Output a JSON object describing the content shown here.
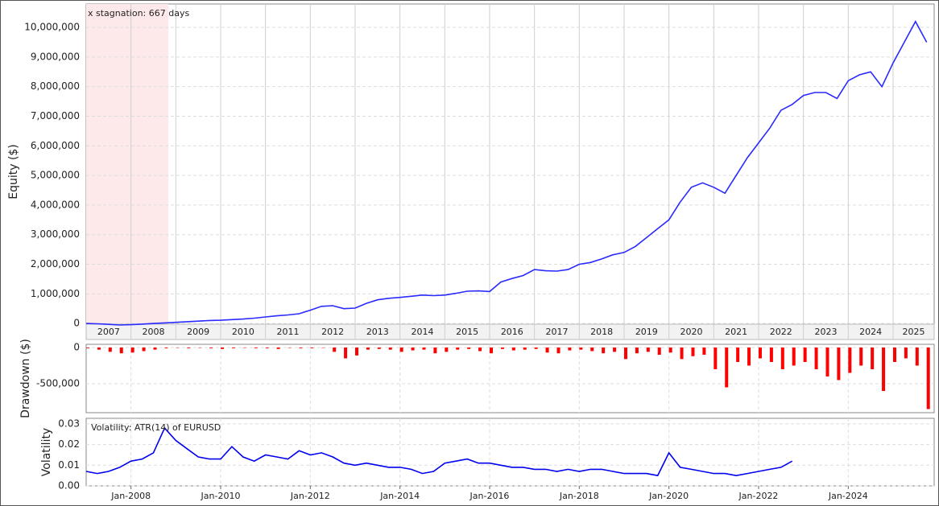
{
  "chart_data": [
    {
      "type": "line",
      "ylabel": "Equity ($)",
      "color": "#2a2aff",
      "annotation": "x stagnation: 667 days",
      "stagnation": [
        "2007-01",
        "2008-11"
      ],
      "xlim": [
        "2007-01",
        "2025-12"
      ],
      "ylim": [
        -540000,
        10790000
      ],
      "yticks": [
        0,
        {
          "value": 1000000,
          "label": "1,000,000"
        },
        {
          "value": 2000000,
          "label": "2,000,000"
        },
        {
          "value": 3000000,
          "label": "3,000,000"
        },
        {
          "value": 4000000,
          "label": "4,000,000"
        },
        {
          "value": 5000000,
          "label": "5,000,000"
        },
        {
          "value": 6000000,
          "label": "6,000,000"
        },
        {
          "value": 7000000,
          "label": "7,000,000"
        },
        {
          "value": 8000000,
          "label": "8,000,000"
        },
        {
          "value": 9000000,
          "label": "9,000,000"
        },
        {
          "value": 10000000,
          "label": "10,000,000"
        }
      ],
      "year_bands": [
        "2007",
        "2008",
        "2009",
        "2010",
        "2011",
        "2012",
        "2013",
        "2014",
        "2015",
        "2016",
        "2017",
        "2018",
        "2019",
        "2020",
        "2021",
        "2022",
        "2023",
        "2024",
        "2025"
      ],
      "x": [
        "2007-01",
        "2007-04",
        "2007-07",
        "2007-10",
        "2008-01",
        "2008-04",
        "2008-07",
        "2008-10",
        "2009-01",
        "2009-04",
        "2009-07",
        "2009-10",
        "2010-01",
        "2010-04",
        "2010-07",
        "2010-10",
        "2011-01",
        "2011-04",
        "2011-07",
        "2011-10",
        "2012-01",
        "2012-04",
        "2012-07",
        "2012-10",
        "2013-01",
        "2013-04",
        "2013-07",
        "2013-10",
        "2014-01",
        "2014-04",
        "2014-07",
        "2014-10",
        "2015-01",
        "2015-04",
        "2015-07",
        "2015-10",
        "2016-01",
        "2016-04",
        "2016-07",
        "2016-10",
        "2017-01",
        "2017-04",
        "2017-07",
        "2017-10",
        "2018-01",
        "2018-04",
        "2018-07",
        "2018-10",
        "2019-01",
        "2019-04",
        "2019-07",
        "2019-10",
        "2020-01",
        "2020-04",
        "2020-07",
        "2020-10",
        "2021-01",
        "2021-04",
        "2021-07",
        "2021-10",
        "2022-01",
        "2022-04",
        "2022-07",
        "2022-10",
        "2023-01",
        "2023-04",
        "2023-07",
        "2023-10",
        "2024-01",
        "2024-04",
        "2024-07",
        "2024-10",
        "2025-01",
        "2025-04",
        "2025-07",
        "2025-10"
      ],
      "values": [
        0,
        -10000,
        -30000,
        -50000,
        -40000,
        -20000,
        0,
        20000,
        40000,
        60000,
        80000,
        100000,
        110000,
        130000,
        150000,
        180000,
        220000,
        260000,
        290000,
        330000,
        450000,
        580000,
        600000,
        500000,
        520000,
        680000,
        800000,
        850000,
        880000,
        920000,
        960000,
        940000,
        960000,
        1020000,
        1090000,
        1100000,
        1080000,
        1400000,
        1520000,
        1620000,
        1820000,
        1780000,
        1770000,
        1820000,
        2000000,
        2060000,
        2180000,
        2320000,
        2400000,
        2600000,
        2900000,
        3200000,
        3500000,
        4100000,
        4600000,
        4750000,
        4600000,
        4400000,
        5000000,
        5600000,
        6100000,
        6600000,
        7200000,
        7400000,
        7700000,
        7800000,
        7800000,
        7600000,
        8200000,
        8400000,
        8500000,
        8000000,
        8800000,
        9500000,
        10200000,
        9500000
      ]
    },
    {
      "type": "bar",
      "ylabel": "Drawdown ($)",
      "color": "#ff0000",
      "xlim": [
        "2007-01",
        "2025-12"
      ],
      "ylim": [
        -900000,
        44000
      ],
      "yticks": [
        0,
        {
          "value": -500000,
          "label": "-500,000"
        }
      ],
      "x": [
        "2007-01",
        "2007-04",
        "2007-07",
        "2007-10",
        "2008-01",
        "2008-04",
        "2008-07",
        "2008-10",
        "2009-01",
        "2009-04",
        "2009-07",
        "2009-10",
        "2010-01",
        "2010-04",
        "2010-07",
        "2010-10",
        "2011-01",
        "2011-04",
        "2011-07",
        "2011-10",
        "2012-01",
        "2012-04",
        "2012-07",
        "2012-10",
        "2013-01",
        "2013-04",
        "2013-07",
        "2013-10",
        "2014-01",
        "2014-04",
        "2014-07",
        "2014-10",
        "2015-01",
        "2015-04",
        "2015-07",
        "2015-10",
        "2016-01",
        "2016-04",
        "2016-07",
        "2016-10",
        "2017-01",
        "2017-04",
        "2017-07",
        "2017-10",
        "2018-01",
        "2018-04",
        "2018-07",
        "2018-10",
        "2019-01",
        "2019-04",
        "2019-07",
        "2019-10",
        "2020-01",
        "2020-04",
        "2020-07",
        "2020-10",
        "2021-01",
        "2021-04",
        "2021-07",
        "2021-10",
        "2022-01",
        "2022-04",
        "2022-07",
        "2022-10",
        "2023-01",
        "2023-04",
        "2023-07",
        "2023-10",
        "2024-01",
        "2024-04",
        "2024-07",
        "2024-10",
        "2025-01",
        "2025-04",
        "2025-07",
        "2025-10"
      ],
      "values": [
        -10000,
        -30000,
        -60000,
        -80000,
        -70000,
        -50000,
        -30000,
        -10000,
        -5000,
        -10000,
        -5000,
        -10000,
        -20000,
        -10000,
        -5000,
        -10000,
        -10000,
        -20000,
        -5000,
        -10000,
        -10000,
        -5000,
        -60000,
        -150000,
        -110000,
        -30000,
        -20000,
        -30000,
        -60000,
        -40000,
        -30000,
        -80000,
        -60000,
        -30000,
        -20000,
        -50000,
        -80000,
        -20000,
        -40000,
        -30000,
        -20000,
        -70000,
        -80000,
        -40000,
        -30000,
        -50000,
        -80000,
        -60000,
        -160000,
        -80000,
        -60000,
        -100000,
        -70000,
        -160000,
        -120000,
        -100000,
        -300000,
        -550000,
        -200000,
        -250000,
        -150000,
        -200000,
        -300000,
        -250000,
        -200000,
        -300000,
        -400000,
        -450000,
        -350000,
        -250000,
        -300000,
        -600000,
        -200000,
        -150000,
        -250000,
        -850000
      ]
    },
    {
      "type": "line",
      "ylabel": "Volatility",
      "color": "#0000ee",
      "annotation": "Volatility: ATR(14) of EURUSD",
      "xlim": [
        "2007-01",
        "2025-12"
      ],
      "ylim": [
        0,
        0.0327
      ],
      "yticks": [
        {
          "value": 0,
          "label": "0.00"
        },
        {
          "value": 0.01,
          "label": "0.01"
        },
        {
          "value": 0.02,
          "label": "0.02"
        },
        {
          "value": 0.03,
          "label": "0.03"
        }
      ],
      "xticks": [
        {
          "value": "2008-01",
          "label": "Jan-2008"
        },
        {
          "value": "2010-01",
          "label": "Jan-2010"
        },
        {
          "value": "2012-01",
          "label": "Jan-2012"
        },
        {
          "value": "2014-01",
          "label": "Jan-2014"
        },
        {
          "value": "2016-01",
          "label": "Jan-2016"
        },
        {
          "value": "2018-01",
          "label": "Jan-2018"
        },
        {
          "value": "2020-01",
          "label": "Jan-2020"
        },
        {
          "value": "2022-01",
          "label": "Jan-2022"
        },
        {
          "value": "2024-01",
          "label": "Jan-2024"
        }
      ],
      "x": [
        "2007-01",
        "2007-04",
        "2007-07",
        "2007-10",
        "2008-01",
        "2008-04",
        "2008-07",
        "2008-10",
        "2009-01",
        "2009-04",
        "2009-07",
        "2009-10",
        "2010-01",
        "2010-04",
        "2010-07",
        "2010-10",
        "2011-01",
        "2011-04",
        "2011-07",
        "2011-10",
        "2012-01",
        "2012-04",
        "2012-07",
        "2012-10",
        "2013-01",
        "2013-04",
        "2013-07",
        "2013-10",
        "2014-01",
        "2014-04",
        "2014-07",
        "2014-10",
        "2015-01",
        "2015-04",
        "2015-07",
        "2015-10",
        "2016-01",
        "2016-04",
        "2016-07",
        "2016-10",
        "2017-01",
        "2017-04",
        "2017-07",
        "2017-10",
        "2018-01",
        "2018-04",
        "2018-07",
        "2018-10",
        "2019-01",
        "2019-04",
        "2019-07",
        "2019-10",
        "2020-01",
        "2020-04",
        "2020-07",
        "2020-10",
        "2021-01",
        "2021-04",
        "2021-07",
        "2021-10",
        "2022-01",
        "2022-04",
        "2022-07",
        "2022-10"
      ],
      "values": [
        0.007,
        0.006,
        0.007,
        0.009,
        0.012,
        0.013,
        0.016,
        0.028,
        0.022,
        0.018,
        0.014,
        0.013,
        0.013,
        0.019,
        0.014,
        0.012,
        0.015,
        0.014,
        0.013,
        0.017,
        0.015,
        0.016,
        0.014,
        0.011,
        0.01,
        0.011,
        0.01,
        0.009,
        0.009,
        0.008,
        0.006,
        0.007,
        0.011,
        0.012,
        0.013,
        0.011,
        0.011,
        0.01,
        0.009,
        0.009,
        0.008,
        0.008,
        0.007,
        0.008,
        0.007,
        0.008,
        0.008,
        0.007,
        0.006,
        0.006,
        0.006,
        0.005,
        0.016,
        0.009,
        0.008,
        0.007,
        0.006,
        0.006,
        0.005,
        0.006,
        0.007,
        0.008,
        0.009,
        0.012
      ]
    }
  ]
}
